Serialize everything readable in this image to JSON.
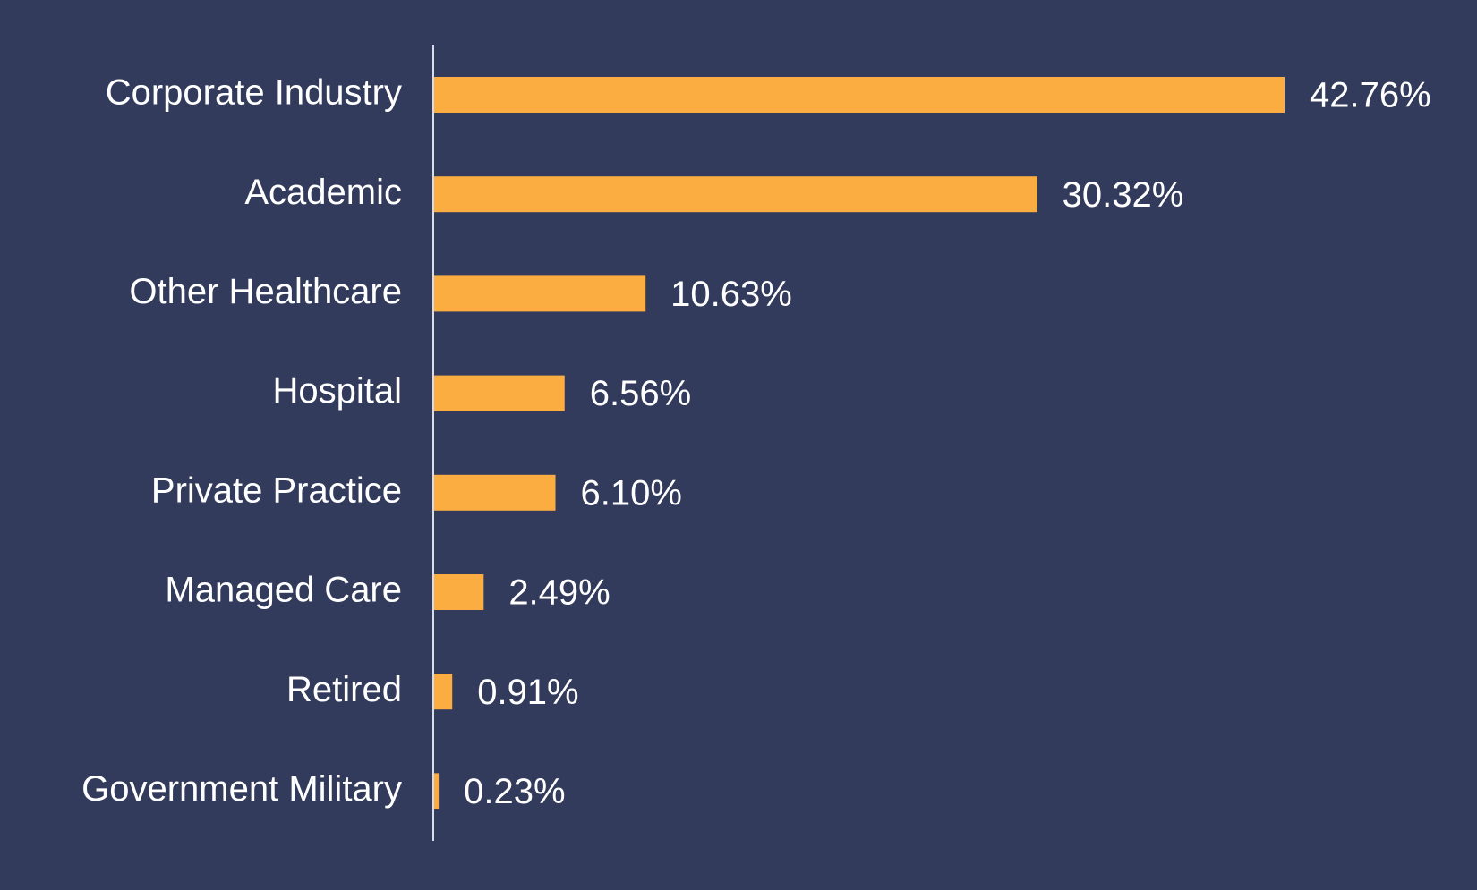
{
  "colors": {
    "background": "#333b5c",
    "bar": "#fbad41",
    "text": "#ffffff",
    "axis": "#d9dce6"
  },
  "chart_data": {
    "type": "bar",
    "orientation": "horizontal",
    "title": "",
    "xlabel": "",
    "ylabel": "",
    "grid": false,
    "xlim": [
      0,
      42.76
    ],
    "categories": [
      "Corporate Industry",
      "Academic",
      "Other Healthcare",
      "Hospital",
      "Private Practice",
      "Managed Care",
      "Retired",
      "Government Military"
    ],
    "values": [
      42.76,
      30.32,
      10.63,
      6.56,
      6.1,
      2.49,
      0.91,
      0.23
    ],
    "data_labels": [
      "42.76%",
      "30.32%",
      "10.63%",
      "6.56%",
      "6.10%",
      "2.49%",
      "0.91%",
      "0.23%"
    ]
  }
}
